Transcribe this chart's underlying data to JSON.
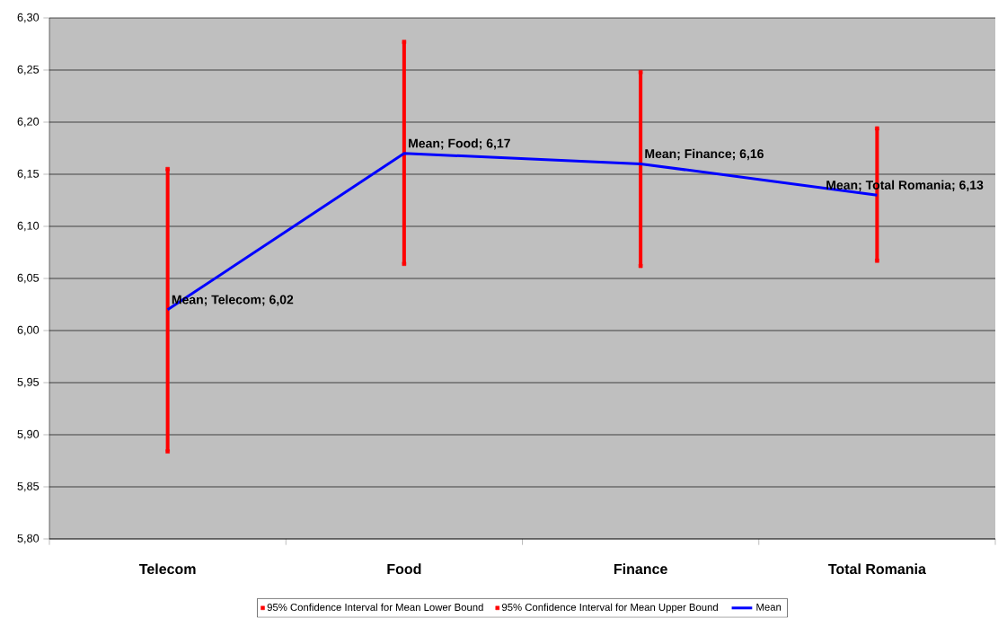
{
  "chart_data": {
    "type": "line",
    "categories": [
      "Telecom",
      "Food",
      "Finance",
      "Total Romania"
    ],
    "series": [
      {
        "name": "95% Confidence Interval for Mean Lower Bound",
        "type": "scatter",
        "marker": "square",
        "color": "#ff0000",
        "values": [
          5.884,
          6.064,
          6.062,
          6.067
        ]
      },
      {
        "name": "95% Confidence Interval for Mean Upper Bound",
        "type": "scatter",
        "marker": "square",
        "color": "#ff0000",
        "values": [
          6.155,
          6.277,
          6.248,
          6.194
        ]
      },
      {
        "name": "Mean",
        "color": "#0000ff",
        "values": [
          6.02,
          6.17,
          6.16,
          6.13
        ],
        "value_labels": [
          "Mean; Telecom; 6,02",
          "Mean; Food; 6,17",
          "Mean; Finance; 6,16",
          "Mean; Total Romania; 6,13"
        ]
      }
    ],
    "ylim": [
      5.8,
      6.3
    ],
    "yticks": [
      {
        "value": 5.8,
        "label": "5,80"
      },
      {
        "value": 5.85,
        "label": "5,85"
      },
      {
        "value": 5.9,
        "label": "5,90"
      },
      {
        "value": 5.95,
        "label": "5,95"
      },
      {
        "value": 6.0,
        "label": "6,00"
      },
      {
        "value": 6.05,
        "label": "6,05"
      },
      {
        "value": 6.1,
        "label": "6,10"
      },
      {
        "value": 6.15,
        "label": "6,15"
      },
      {
        "value": 6.2,
        "label": "6,20"
      },
      {
        "value": 6.25,
        "label": "6,25"
      },
      {
        "value": 6.3,
        "label": "6,30"
      }
    ],
    "grid": "y",
    "legend": "bottom",
    "marker": "none"
  }
}
